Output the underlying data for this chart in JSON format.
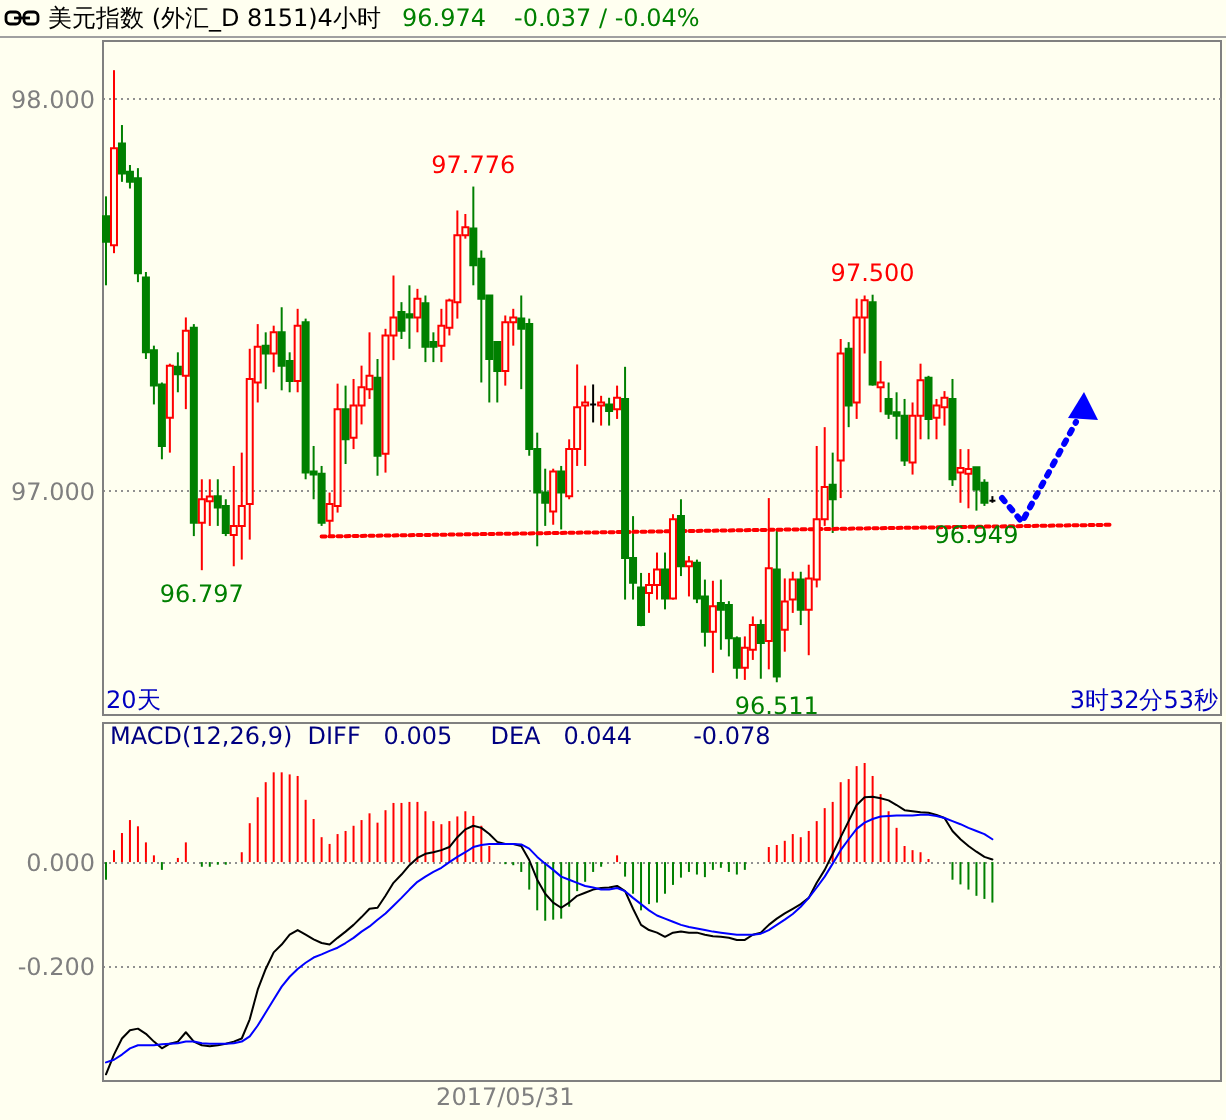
{
  "chart_data": [
    {
      "type": "candlestick",
      "title": "美元指数 (外汇_D 8151)4小时",
      "annotations": [
        "96.974",
        "-0.037 / -0.04%",
        "20天",
        "3时32分53秒",
        {
          "text": "97.776",
          "y": 97.776
        },
        {
          "text": "97.500",
          "y": 97.5
        },
        {
          "text": "96.797",
          "y": 96.797
        },
        {
          "text": "96.511",
          "y": 96.511
        },
        {
          "text": "96.949",
          "y": 96.949
        }
      ],
      "categories": [
        null,
        null,
        null,
        null,
        null,
        null,
        null,
        null,
        null,
        null,
        null,
        null,
        null,
        null,
        null,
        null,
        null,
        null,
        null,
        null,
        null,
        null,
        null,
        null,
        null,
        null,
        null,
        null,
        null,
        null,
        null,
        null,
        null,
        null,
        null,
        null,
        null,
        null,
        null,
        null,
        null,
        null,
        null,
        null,
        null,
        null,
        null,
        null,
        null,
        null,
        null,
        null,
        null,
        null,
        null,
        null,
        null,
        null,
        null,
        null,
        null,
        null,
        null,
        null,
        null,
        null,
        null,
        null,
        null,
        null,
        null,
        null,
        null,
        null,
        null,
        null,
        null,
        null,
        null,
        null,
        null,
        null,
        null,
        null,
        null,
        null,
        null,
        null,
        null,
        null,
        null,
        null,
        null,
        null,
        null,
        null,
        null,
        null,
        null,
        null,
        null,
        null,
        null,
        null,
        null,
        null,
        null,
        null,
        null,
        null,
        null,
        null,
        null,
        null,
        null,
        null,
        null,
        null,
        null,
        null,
        null,
        null,
        null,
        null,
        null,
        null,
        null,
        null,
        null,
        null,
        null,
        null,
        null,
        null,
        null,
        null,
        null,
        null,
        null,
        null
      ],
      "ohlc": [
        [
          97.7,
          97.751,
          97.524,
          97.635
        ],
        [
          97.626,
          98.073,
          97.606,
          97.874
        ],
        [
          97.886,
          97.933,
          97.788,
          97.809
        ],
        [
          97.814,
          97.831,
          97.771,
          97.788
        ],
        [
          97.797,
          97.823,
          97.532,
          97.555
        ],
        [
          97.544,
          97.558,
          97.336,
          97.353
        ],
        [
          97.358,
          97.37,
          97.22,
          97.268
        ],
        [
          97.271,
          97.276,
          97.08,
          97.114
        ],
        [
          97.186,
          97.324,
          97.097,
          97.319
        ],
        [
          97.316,
          97.353,
          97.251,
          97.297
        ],
        [
          97.293,
          97.442,
          97.208,
          97.408
        ],
        [
          97.416,
          97.425,
          96.884,
          96.918
        ],
        [
          96.918,
          97.029,
          96.797,
          96.978
        ],
        [
          96.973,
          97.029,
          96.91,
          96.985
        ],
        [
          96.986,
          97.029,
          96.91,
          96.957
        ],
        [
          96.961,
          96.978,
          96.884,
          96.892
        ],
        [
          96.887,
          97.063,
          96.807,
          96.91
        ],
        [
          96.91,
          97.097,
          96.824,
          96.961
        ],
        [
          96.966,
          97.362,
          96.875,
          97.285
        ],
        [
          97.276,
          97.425,
          97.225,
          97.367
        ],
        [
          97.37,
          97.404,
          97.259,
          97.35
        ],
        [
          97.35,
          97.421,
          97.302,
          97.404
        ],
        [
          97.404,
          97.468,
          97.256,
          97.319
        ],
        [
          97.331,
          97.353,
          97.251,
          97.28
        ],
        [
          97.28,
          97.464,
          97.251,
          97.421
        ],
        [
          97.43,
          97.439,
          97.029,
          97.046
        ],
        [
          97.049,
          97.114,
          96.978,
          97.041
        ],
        [
          97.043,
          97.063,
          96.91,
          96.918
        ],
        [
          96.923,
          96.995,
          96.884,
          96.966
        ],
        [
          96.961,
          97.273,
          96.944,
          97.208
        ],
        [
          97.208,
          97.268,
          97.068,
          97.131
        ],
        [
          97.135,
          97.285,
          97.106,
          97.217
        ],
        [
          97.217,
          97.319,
          97.169,
          97.264
        ],
        [
          97.259,
          97.404,
          97.234,
          97.293
        ],
        [
          97.288,
          97.336,
          97.038,
          97.089
        ],
        [
          97.094,
          97.413,
          97.046,
          97.396
        ],
        [
          97.396,
          97.549,
          97.333,
          97.442
        ],
        [
          97.456,
          97.481,
          97.387,
          97.408
        ],
        [
          97.45,
          97.524,
          97.362,
          97.442
        ],
        [
          97.442,
          97.515,
          97.404,
          97.49
        ],
        [
          97.478,
          97.498,
          97.328,
          97.367
        ],
        [
          97.379,
          97.404,
          97.328,
          97.367
        ],
        [
          97.37,
          97.464,
          97.328,
          97.421
        ],
        [
          97.416,
          97.49,
          97.396,
          97.485
        ],
        [
          97.481,
          97.715,
          97.439,
          97.652
        ],
        [
          97.652,
          97.706,
          97.643,
          97.672
        ],
        [
          97.669,
          97.776,
          97.524,
          97.575
        ],
        [
          97.592,
          97.613,
          97.276,
          97.49
        ],
        [
          97.498,
          97.498,
          97.225,
          97.336
        ],
        [
          97.379,
          97.379,
          97.225,
          97.305
        ],
        [
          97.305,
          97.447,
          97.268,
          97.43
        ],
        [
          97.43,
          97.464,
          97.37,
          97.442
        ],
        [
          97.439,
          97.498,
          97.259,
          97.413
        ],
        [
          97.425,
          97.439,
          97.089,
          97.106
        ],
        [
          97.106,
          97.148,
          96.858,
          96.995
        ],
        [
          96.995,
          97.056,
          96.91,
          96.969
        ],
        [
          96.947,
          97.056,
          96.913,
          97.049
        ],
        [
          97.049,
          97.063,
          96.901,
          96.995
        ],
        [
          96.986,
          97.131,
          96.978,
          97.106
        ],
        [
          97.106,
          97.322,
          97.063,
          97.213
        ],
        [
          97.217,
          97.268,
          97.063,
          97.225
        ],
        [
          97.22,
          97.271,
          97.174,
          97.22
        ],
        [
          97.217,
          97.242,
          97.166,
          97.225
        ],
        [
          97.22,
          97.237,
          97.166,
          97.203
        ],
        [
          97.208,
          97.268,
          97.183,
          97.237
        ],
        [
          97.234,
          97.316,
          96.722,
          96.828
        ],
        [
          96.828,
          96.935,
          96.722,
          96.765
        ],
        [
          96.753,
          96.79,
          96.654,
          96.657
        ],
        [
          96.739,
          96.79,
          96.688,
          96.759
        ],
        [
          96.759,
          96.842,
          96.722,
          96.799
        ],
        [
          96.799,
          96.842,
          96.697,
          96.725
        ],
        [
          96.725,
          96.94,
          96.722,
          96.927
        ],
        [
          96.935,
          96.978,
          96.782,
          96.807
        ],
        [
          96.807,
          96.833,
          96.73,
          96.819
        ],
        [
          96.816,
          96.824,
          96.713,
          96.725
        ],
        [
          96.73,
          96.773,
          96.602,
          96.64
        ],
        [
          96.64,
          96.77,
          96.535,
          96.705
        ],
        [
          96.713,
          96.773,
          96.594,
          96.696
        ],
        [
          96.708,
          96.718,
          96.577,
          96.623
        ],
        [
          96.623,
          96.628,
          96.52,
          96.548
        ],
        [
          96.548,
          96.628,
          96.517,
          96.599
        ],
        [
          96.594,
          96.679,
          96.568,
          96.657
        ],
        [
          96.657,
          96.671,
          96.52,
          96.611
        ],
        [
          96.616,
          96.981,
          96.544,
          96.802
        ],
        [
          96.799,
          96.901,
          96.511,
          96.526
        ],
        [
          96.645,
          96.776,
          96.589,
          96.717
        ],
        [
          96.722,
          96.793,
          96.688,
          96.773
        ],
        [
          96.773,
          96.793,
          96.657,
          96.696
        ],
        [
          96.696,
          96.811,
          96.58,
          96.776
        ],
        [
          96.773,
          97.114,
          96.753,
          96.927
        ],
        [
          96.927,
          97.162,
          96.91,
          97.009
        ],
        [
          97.015,
          97.097,
          96.892,
          96.978
        ],
        [
          97.077,
          97.387,
          96.981,
          97.35
        ],
        [
          97.362,
          97.379,
          97.162,
          97.217
        ],
        [
          97.225,
          97.49,
          97.183,
          97.442
        ],
        [
          97.442,
          97.498,
          97.35,
          97.486
        ],
        [
          97.481,
          97.5,
          97.268,
          97.271
        ],
        [
          97.264,
          97.331,
          97.2,
          97.276
        ],
        [
          97.234,
          97.276,
          97.183,
          97.196
        ],
        [
          97.2,
          97.251,
          97.131,
          97.191
        ],
        [
          97.191,
          97.234,
          97.063,
          97.077
        ],
        [
          97.072,
          97.225,
          97.041,
          97.191
        ],
        [
          97.191,
          97.324,
          97.131,
          97.282
        ],
        [
          97.288,
          97.293,
          97.131,
          97.183
        ],
        [
          97.186,
          97.234,
          97.131,
          97.217
        ],
        [
          97.213,
          97.254,
          97.166,
          97.237
        ],
        [
          97.234,
          97.285,
          97.012,
          97.029
        ],
        [
          97.046,
          97.106,
          96.969,
          97.058
        ],
        [
          97.043,
          97.106,
          96.955,
          97.055
        ],
        [
          97.06,
          97.06,
          96.949,
          97.003
        ],
        [
          97.02,
          97.029,
          96.961,
          96.969
        ],
        [
          96.974,
          96.986,
          96.969,
          96.974
        ],
        null,
        null,
        null,
        null,
        null,
        null,
        null,
        null,
        null,
        null,
        null,
        null,
        null,
        null,
        null,
        null,
        null,
        null,
        null,
        null,
        null,
        null,
        null,
        null,
        null,
        null,
        null,
        null
      ],
      "colors": [
        "#008000",
        "#ff0000",
        "#008000",
        "#008000",
        "#008000",
        "#008000",
        "#008000",
        "#008000",
        "#ff0000",
        "#008000",
        "#ff0000",
        "#008000",
        "#ff0000",
        "#ff0000",
        "#008000",
        "#008000",
        "#ff0000",
        "#ff0000",
        "#ff0000",
        "#ff0000",
        "#008000",
        "#ff0000",
        "#008000",
        "#008000",
        "#ff0000",
        "#008000",
        "#008000",
        "#008000",
        "#ff0000",
        "#ff0000",
        "#008000",
        "#ff0000",
        "#ff0000",
        "#ff0000",
        "#008000",
        "#ff0000",
        "#ff0000",
        "#008000",
        "#008000",
        "#ff0000",
        "#008000",
        "#008000",
        "#ff0000",
        "#ff0000",
        "#ff0000",
        "#ff0000",
        "#008000",
        "#008000",
        "#008000",
        "#008000",
        "#ff0000",
        "#ff0000",
        "#008000",
        "#008000",
        "#008000",
        "#008000",
        "#ff0000",
        "#008000",
        "#ff0000",
        "#ff0000",
        "#ff0000",
        "#000000",
        "#ff0000",
        "#008000",
        "#ff0000",
        "#008000",
        "#008000",
        "#008000",
        "#ff0000",
        "#ff0000",
        "#008000",
        "#ff0000",
        "#008000",
        "#ff0000",
        "#008000",
        "#008000",
        "#ff0000",
        "#008000",
        "#008000",
        "#008000",
        "#ff0000",
        "#ff0000",
        "#008000",
        "#ff0000",
        "#008000",
        "#ff0000",
        "#ff0000",
        "#008000",
        "#ff0000",
        "#ff0000",
        "#ff0000",
        "#008000",
        "#ff0000",
        "#008000",
        "#ff0000",
        "#ff0000",
        "#008000",
        "#ff0000",
        "#008000",
        "#008000",
        "#008000",
        "#ff0000",
        "#ff0000",
        "#008000",
        "#ff0000",
        "#ff0000",
        "#008000",
        "#ff0000",
        "#ff0000",
        "#008000",
        "#008000",
        "#000000",
        null,
        null,
        null,
        null,
        null,
        null,
        null,
        null,
        null,
        null,
        null,
        null,
        null,
        null,
        null,
        null,
        null,
        null,
        null,
        null,
        null,
        null,
        null,
        null,
        null,
        null,
        null,
        null
      ],
      "series": [
        {
          "type": "line",
          "color": "#ff0000",
          "line_style": "dotted",
          "values": [
            null,
            null,
            null,
            null,
            null,
            null,
            null,
            null,
            null,
            null,
            null,
            null,
            null,
            null,
            null,
            null,
            null,
            null,
            null,
            null,
            null,
            null,
            null,
            null,
            null,
            null,
            null,
            96.883,
            null,
            null,
            null,
            null,
            null,
            null,
            null,
            null,
            null,
            null,
            null,
            null,
            null,
            null,
            null,
            null,
            null,
            null,
            null,
            null,
            null,
            null,
            null,
            null,
            null,
            null,
            null,
            null,
            null,
            null,
            null,
            null,
            null,
            null,
            null,
            null,
            null,
            null,
            null,
            null,
            null,
            null,
            null,
            null,
            null,
            null,
            null,
            null,
            null,
            null,
            null,
            null,
            null,
            null,
            null,
            null,
            null,
            null,
            null,
            null,
            null,
            null,
            null,
            null,
            null,
            null,
            null,
            null,
            null,
            null,
            null,
            null,
            null,
            null,
            null,
            null,
            null,
            null,
            null,
            null,
            null,
            null,
            null,
            null,
            null,
            null,
            null,
            null,
            null,
            null,
            null,
            null,
            null,
            null,
            null,
            null,
            null,
            null,
            96.913,
            null,
            null,
            null,
            null,
            null,
            null,
            null,
            null,
            null,
            null,
            null,
            null,
            null
          ]
        }
      ],
      "ylim": [
        96.43,
        98.15
      ],
      "yticks": [
        {
          "value": 97,
          "label": "97.000"
        },
        {
          "value": 98,
          "label": "98.000"
        }
      ],
      "grid": "y",
      "tick_labels": "y"
    },
    {
      "type": "bar",
      "title": "MACD(12,26,9)  DIFF   0.005     DEA   0.044        -0.078",
      "categories": [
        null,
        null,
        null,
        null,
        null,
        null,
        null,
        null,
        null,
        null,
        null,
        null,
        null,
        null,
        null,
        null,
        null,
        null,
        null,
        null,
        null,
        null,
        null,
        null,
        null,
        null,
        null,
        null,
        null,
        null,
        null,
        null,
        null,
        null,
        null,
        null,
        null,
        null,
        null,
        null,
        null,
        null,
        null,
        null,
        null,
        null,
        null,
        null,
        null,
        null,
        "2017/05/31",
        null,
        null,
        null,
        null,
        null,
        null,
        null,
        null,
        null,
        null,
        null,
        null,
        null,
        null,
        null,
        null,
        null,
        null,
        null,
        null,
        null,
        null,
        null,
        null,
        null,
        null,
        null,
        null,
        null,
        null,
        null,
        null,
        null,
        null,
        null,
        null,
        null,
        null,
        null,
        null,
        null,
        null,
        null,
        null,
        null,
        null,
        null,
        null,
        null,
        null,
        null,
        null,
        null,
        null,
        null,
        null,
        null,
        null,
        null,
        null,
        null,
        null,
        null,
        null,
        null,
        null,
        null,
        null,
        null,
        null,
        null,
        null,
        null,
        null,
        null,
        null,
        null,
        null,
        null,
        null,
        null,
        null,
        null,
        null,
        null,
        null,
        null,
        null,
        null
      ],
      "series": [
        {
          "type": "bar",
          "color": "#ff0000",
          "values": [
            null,
            0.023,
            0.056,
            0.081,
            0.069,
            0.038,
            0.013,
            null,
            null,
            0.008,
            0.038,
            null,
            null,
            null,
            null,
            null,
            null,
            0.019,
            0.075,
            0.125,
            0.154,
            0.173,
            0.173,
            0.169,
            0.166,
            0.12,
            0.083,
            0.048,
            0.035,
            0.054,
            0.06,
            0.07,
            0.081,
            0.094,
            0.076,
            0.1,
            0.114,
            0.114,
            0.116,
            0.116,
            0.098,
            0.079,
            0.073,
            0.079,
            0.088,
            0.098,
            0.089,
            0.07,
            0.031,
            null,
            null,
            null,
            null,
            null,
            null,
            null,
            null,
            null,
            null,
            null,
            null,
            null,
            null,
            null,
            0.013,
            null,
            null,
            null,
            null,
            null,
            null,
            null,
            null,
            null,
            null,
            null,
            null,
            null,
            null,
            null,
            null,
            null,
            null,
            0.029,
            0.033,
            0.041,
            0.054,
            0.048,
            0.06,
            0.079,
            0.104,
            0.116,
            0.154,
            0.16,
            0.185,
            0.191,
            0.166,
            0.131,
            0.098,
            0.066,
            0.031,
            0.023,
            0.019,
            0.006,
            null,
            null,
            null,
            null,
            null,
            null,
            null,
            null,
            null,
            null,
            null,
            null,
            null,
            null,
            null,
            null,
            null,
            null,
            null,
            null,
            null,
            null,
            null,
            null,
            null,
            null,
            null,
            null,
            null,
            null,
            null,
            null,
            null,
            null,
            null,
            null
          ]
        },
        {
          "type": "bar",
          "color": "#008000",
          "values": [
            -0.034,
            null,
            null,
            null,
            null,
            null,
            null,
            -0.015,
            null,
            null,
            null,
            null,
            -0.009,
            -0.009,
            -0.005,
            -0.005,
            null,
            null,
            null,
            null,
            null,
            null,
            null,
            null,
            null,
            null,
            null,
            null,
            null,
            null,
            null,
            null,
            null,
            null,
            null,
            null,
            null,
            null,
            null,
            null,
            null,
            null,
            null,
            null,
            null,
            null,
            null,
            null,
            null,
            null,
            -0.004,
            -0.006,
            -0.019,
            -0.053,
            -0.093,
            -0.113,
            -0.111,
            -0.109,
            -0.086,
            -0.056,
            -0.038,
            -0.019,
            -0.009,
            null,
            null,
            -0.028,
            -0.061,
            -0.093,
            -0.081,
            -0.078,
            -0.061,
            -0.044,
            -0.03,
            -0.019,
            -0.024,
            -0.029,
            -0.015,
            -0.011,
            -0.019,
            -0.024,
            -0.015,
            null,
            null,
            null,
            null,
            null,
            null,
            null,
            null,
            null,
            null,
            null,
            null,
            null,
            null,
            null,
            null,
            null,
            null,
            null,
            null,
            null,
            null,
            null,
            null,
            null,
            -0.034,
            -0.043,
            -0.053,
            -0.065,
            -0.071,
            -0.078,
            null,
            null,
            null,
            null,
            null,
            null,
            null,
            null,
            null,
            null,
            null,
            null,
            null,
            null,
            null,
            null,
            null,
            null,
            null,
            null,
            null,
            null,
            null,
            null,
            null,
            null,
            null,
            null
          ]
        },
        {
          "type": "line",
          "color": "#000000",
          "values": [
            -0.409,
            -0.371,
            -0.34,
            -0.324,
            -0.321,
            -0.331,
            -0.346,
            -0.359,
            -0.35,
            -0.346,
            -0.328,
            -0.346,
            -0.353,
            -0.355,
            -0.353,
            -0.35,
            -0.346,
            -0.34,
            -0.303,
            -0.246,
            -0.206,
            -0.174,
            -0.159,
            -0.14,
            -0.131,
            -0.14,
            -0.149,
            -0.156,
            -0.159,
            -0.146,
            -0.134,
            -0.121,
            -0.106,
            -0.09,
            -0.088,
            -0.065,
            -0.04,
            -0.024,
            -0.006,
            0.008,
            0.016,
            0.019,
            0.023,
            0.029,
            0.048,
            0.063,
            0.07,
            0.066,
            0.054,
            0.039,
            0.035,
            0.035,
            0.031,
            0.004,
            -0.034,
            -0.061,
            -0.078,
            -0.088,
            -0.078,
            -0.065,
            -0.059,
            -0.053,
            -0.05,
            -0.049,
            -0.046,
            -0.056,
            -0.09,
            -0.121,
            -0.131,
            -0.136,
            -0.144,
            -0.136,
            -0.134,
            -0.136,
            -0.136,
            -0.14,
            -0.143,
            -0.144,
            -0.146,
            -0.15,
            -0.15,
            -0.14,
            -0.136,
            -0.121,
            -0.109,
            -0.099,
            -0.09,
            -0.081,
            -0.069,
            -0.04,
            -0.015,
            0.016,
            0.048,
            0.079,
            0.11,
            0.125,
            0.126,
            0.123,
            0.119,
            0.11,
            0.1,
            0.098,
            0.096,
            0.095,
            0.091,
            0.085,
            0.06,
            0.044,
            0.031,
            0.02,
            0.01,
            0.005,
            null,
            null,
            null,
            null,
            null,
            null,
            null,
            null,
            null,
            null,
            null,
            null,
            null,
            null,
            null,
            null,
            null,
            null,
            null,
            null,
            null,
            null,
            null,
            null,
            null,
            null,
            null,
            null
          ]
        },
        {
          "type": "line",
          "color": "#0000ff",
          "values": [
            -0.386,
            -0.381,
            -0.371,
            -0.359,
            -0.353,
            -0.353,
            -0.353,
            -0.351,
            -0.35,
            -0.349,
            -0.346,
            -0.346,
            -0.349,
            -0.35,
            -0.35,
            -0.35,
            -0.349,
            -0.346,
            -0.336,
            -0.315,
            -0.29,
            -0.265,
            -0.24,
            -0.221,
            -0.206,
            -0.194,
            -0.184,
            -0.178,
            -0.171,
            -0.165,
            -0.156,
            -0.146,
            -0.134,
            -0.124,
            -0.111,
            -0.099,
            -0.084,
            -0.069,
            -0.053,
            -0.038,
            -0.028,
            -0.019,
            -0.011,
            0,
            0.01,
            0.019,
            0.029,
            0.033,
            0.035,
            0.035,
            0.035,
            0.035,
            0.034,
            0.026,
            0.01,
            -0.003,
            -0.015,
            -0.028,
            -0.034,
            -0.04,
            -0.046,
            -0.049,
            -0.053,
            -0.053,
            -0.05,
            -0.056,
            -0.069,
            -0.081,
            -0.093,
            -0.103,
            -0.109,
            -0.115,
            -0.121,
            -0.125,
            -0.128,
            -0.131,
            -0.134,
            -0.136,
            -0.138,
            -0.14,
            -0.14,
            -0.14,
            -0.138,
            -0.131,
            -0.121,
            -0.111,
            -0.1,
            -0.086,
            -0.069,
            -0.049,
            -0.028,
            -0.003,
            0.023,
            0.044,
            0.064,
            0.076,
            0.083,
            0.088,
            0.089,
            0.09,
            0.09,
            0.09,
            0.091,
            0.091,
            0.089,
            0.085,
            0.079,
            0.073,
            0.066,
            0.06,
            0.054,
            0.044,
            null,
            null,
            null,
            null,
            null,
            null,
            null,
            null,
            null,
            null,
            null,
            null,
            null,
            null,
            null,
            null,
            null,
            null,
            null,
            null,
            null,
            null,
            null,
            null,
            null,
            null,
            null,
            null
          ]
        }
      ],
      "ylim": [
        -0.42,
        0.27
      ],
      "yticks": [
        {
          "value": 0,
          "label": "0.000"
        },
        {
          "value": -0.2,
          "label": "-0.200"
        }
      ],
      "grid": "y"
    }
  ]
}
